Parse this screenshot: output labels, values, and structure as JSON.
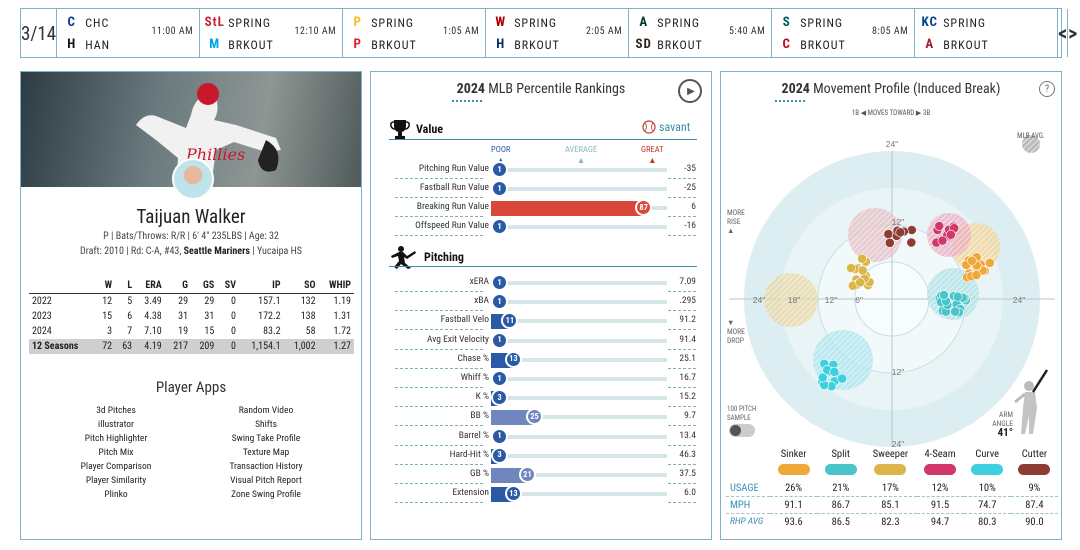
{
  "scoreboard": {
    "date": "3/14",
    "games": [
      {
        "away_abbr": "CHC",
        "home_abbr": "HAN",
        "time": "11:00 AM",
        "away_logo": "C",
        "home_logo": "H",
        "away_color": "#0e3386",
        "home_color": "#111111"
      },
      {
        "away_abbr": "SPRING",
        "home_abbr": "BRKOUT",
        "time": "12:10 AM",
        "away_logo": "StL",
        "home_logo": "M",
        "away_color": "#c41e3a",
        "home_color": "#00a3e0"
      },
      {
        "away_abbr": "SPRING",
        "home_abbr": "BRKOUT",
        "time": "1:05 AM",
        "away_logo": "P",
        "home_logo": "P",
        "away_color": "#fdb827",
        "home_color": "#e81828"
      },
      {
        "away_abbr": "SPRING",
        "home_abbr": "BRKOUT",
        "time": "2:05 AM",
        "away_logo": "W",
        "home_logo": "H",
        "away_color": "#ab0003",
        "home_color": "#002d62"
      },
      {
        "away_abbr": "SPRING",
        "home_abbr": "BRKOUT",
        "time": "5:40 AM",
        "away_logo": "A",
        "home_logo": "SD",
        "away_color": "#003831",
        "home_color": "#2f241d"
      },
      {
        "away_abbr": "SPRING",
        "home_abbr": "BRKOUT",
        "time": "8:05 AM",
        "away_logo": "S",
        "home_logo": "C",
        "away_color": "#005c5c",
        "home_color": "#c6011f"
      },
      {
        "away_abbr": "SPRING",
        "home_abbr": "BRKOUT",
        "time": "",
        "away_logo": "KC",
        "home_logo": "A",
        "away_color": "#004687",
        "home_color": "#a71930"
      }
    ],
    "prev": "<",
    "next": ">"
  },
  "player": {
    "name": "Taijuan Walker",
    "info": "P | Bats/Throws: R/R | 6' 4\" 235LBS | Age: 32",
    "draft_prefix": "Draft: 2010 | Rd: C-A, #43, ",
    "draft_team": "Seattle Mariners",
    "draft_suffix": " | Yucaipa HS"
  },
  "stats": {
    "headers": [
      "",
      "W",
      "L",
      "ERA",
      "G",
      "GS",
      "SV",
      "IP",
      "SO",
      "WHIP"
    ],
    "rows": [
      [
        "2022",
        "12",
        "5",
        "3.49",
        "29",
        "29",
        "0",
        "157.1",
        "132",
        "1.19"
      ],
      [
        "2023",
        "15",
        "6",
        "4.38",
        "31",
        "31",
        "0",
        "172.2",
        "138",
        "1.31"
      ],
      [
        "2024",
        "3",
        "7",
        "7.10",
        "19",
        "15",
        "0",
        "83.2",
        "58",
        "1.72"
      ]
    ],
    "total": [
      "12 Seasons",
      "72",
      "63",
      "4.19",
      "217",
      "209",
      "0",
      "1,154.1",
      "1,002",
      "1.27"
    ]
  },
  "apps": {
    "title": "Player Apps",
    "items": [
      "3d Pitches",
      "Random Video",
      "illustrator",
      "Shifts",
      "Pitch Highlighter",
      "Swing Take Profile",
      "Pitch Mix",
      "Texture Map",
      "Player Comparison",
      "Transaction History",
      "Player Similarity",
      "Visual Pitch Report",
      "Plinko",
      "Zone Swing Profile"
    ]
  },
  "percentile": {
    "title_year": "2024",
    "title_rest": " MLB Percentile Rankings",
    "savant": "savant",
    "poor": "POOR",
    "average": "AVERAGE",
    "great": "GREAT",
    "value_section": "Value",
    "pitching_section": "Pitching",
    "value_rows": [
      {
        "label": "Pitching Run Value",
        "pct": 1,
        "value": "-35"
      },
      {
        "label": "Fastball Run Value",
        "pct": 1,
        "value": "-25"
      },
      {
        "label": "Breaking Run Value",
        "pct": 87,
        "value": "6"
      },
      {
        "label": "Offspeed Run Value",
        "pct": 1,
        "value": "-16"
      }
    ],
    "pitching_rows": [
      {
        "label": "xERA",
        "pct": 1,
        "value": "7.09"
      },
      {
        "label": "xBA",
        "pct": 1,
        "value": ".295"
      },
      {
        "label": "Fastball Velo",
        "pct": 11,
        "value": "91.2"
      },
      {
        "label": "Avg Exit Velocity",
        "pct": 1,
        "value": "91.4"
      },
      {
        "label": "Chase %",
        "pct": 13,
        "value": "25.1"
      },
      {
        "label": "Whiff %",
        "pct": 1,
        "value": "16.7"
      },
      {
        "label": "K %",
        "pct": 3,
        "value": "15.2"
      },
      {
        "label": "BB %",
        "pct": 25,
        "value": "9.7"
      },
      {
        "label": "Barrel %",
        "pct": 1,
        "value": "13.4"
      },
      {
        "label": "Hard-Hit %",
        "pct": 3,
        "value": "46.3"
      },
      {
        "label": "GB %",
        "pct": 21,
        "value": "37.5"
      },
      {
        "label": "Extension",
        "pct": 13,
        "value": "6.0"
      }
    ]
  },
  "movement": {
    "title_year": "2024",
    "title_rest": " Movement Profile (Induced Break)",
    "moves_toward": "1B ◀  MOVES TOWARD  ▶ 3B",
    "mlb_avg": "MLB AVG.",
    "more_rise": "MORE RISE",
    "more_drop": "MORE DROP",
    "sample": "100 PITCH SAMPLE",
    "arm_angle_label": "ARM ANGLE",
    "arm_angle": "41°",
    "ring_labels": [
      "24\"",
      "18\"",
      "12\"",
      "6\"",
      "24\"",
      "12\"",
      "12\"",
      "24\""
    ],
    "pitches": [
      {
        "name": "Sinker",
        "color": "#f0a73a",
        "usage": "26%",
        "mph": "91.1",
        "avg": "93.6"
      },
      {
        "name": "Split",
        "color": "#49c4c8",
        "usage": "21%",
        "mph": "86.7",
        "avg": "86.5"
      },
      {
        "name": "Sweeper",
        "color": "#dcb54a",
        "usage": "17%",
        "mph": "85.1",
        "avg": "82.3"
      },
      {
        "name": "4-Seam",
        "color": "#d0386a",
        "usage": "12%",
        "mph": "91.5",
        "avg": "94.7"
      },
      {
        "name": "Curve",
        "color": "#3ed0df",
        "usage": "10%",
        "mph": "74.7",
        "avg": "80.3"
      },
      {
        "name": "Cutter",
        "color": "#8e3b33",
        "usage": "9%",
        "mph": "87.4",
        "avg": "90.0"
      }
    ],
    "row_usage": "USAGE",
    "row_mph": "MPH",
    "row_avg": "RHP AVG"
  },
  "colors": {
    "accent": "#3a8fb0",
    "poor": "#2a5aa5",
    "great": "#d9463a",
    "border": "#7fb2c4"
  }
}
